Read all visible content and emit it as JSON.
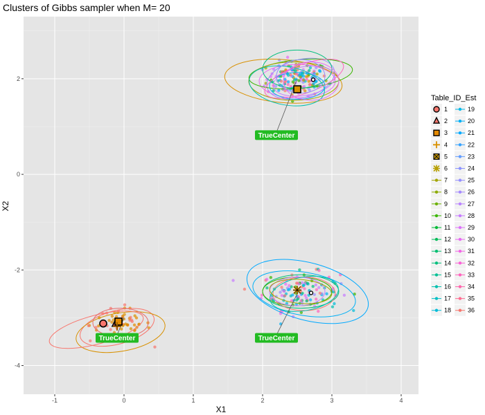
{
  "chart_data": {
    "type": "scatter",
    "title": "Clusters of Gibbs sampler when M= 20",
    "xlabel": "X1",
    "ylabel": "X2",
    "xlim": [
      -1.45,
      4.25
    ],
    "ylim": [
      -4.6,
      3.3
    ],
    "x_ticks": [
      -1,
      0,
      1,
      2,
      3,
      4
    ],
    "y_ticks": [
      -4,
      -2,
      0,
      2
    ],
    "grid": true,
    "background": "#e5e5e5",
    "legend": {
      "title": "Table_ID_Est",
      "placement": "right",
      "entries": [
        "1",
        "2",
        "3",
        "4",
        "5",
        "6",
        "7",
        "8",
        "9",
        "10",
        "11",
        "12",
        "13",
        "14",
        "15",
        "16",
        "17",
        "18",
        "19",
        "20",
        "21",
        "22",
        "23",
        "24",
        "25",
        "26",
        "27",
        "28",
        "29",
        "30",
        "31",
        "32",
        "33",
        "34",
        "35",
        "36"
      ]
    },
    "clusters": [
      {
        "center": [
          2.5,
          2.0
        ],
        "sd": [
          0.22,
          0.18
        ],
        "count": 160,
        "colors": [
          "#e76bf3",
          "#00bfc4",
          "#9590ff",
          "#c77cff",
          "#00b0f6",
          "#a3a500",
          "#39b600",
          "#00bf7d",
          "#f8766d",
          "#d89000",
          "#ff62bc",
          "#00a9ff"
        ]
      },
      {
        "center": [
          2.55,
          -2.45
        ],
        "sd": [
          0.28,
          0.2
        ],
        "count": 130,
        "colors": [
          "#00bf7d",
          "#00c0af",
          "#00b0f6",
          "#39b600",
          "#f8766d",
          "#c77cff",
          "#00bcd8",
          "#ff62bc",
          "#9590ff",
          "#e76bf3"
        ]
      },
      {
        "center": [
          -0.05,
          -3.15
        ],
        "sd": [
          0.22,
          0.18
        ],
        "count": 70,
        "colors": [
          "#f8766d",
          "#e38900",
          "#d89000"
        ]
      }
    ],
    "ellipses": [
      {
        "cx": 2.5,
        "cy": 1.95,
        "rx": 0.55,
        "ry": 0.35,
        "angle": 0,
        "color": "#e76bf3"
      },
      {
        "cx": 2.55,
        "cy": 2.0,
        "rx": 0.5,
        "ry": 0.4,
        "angle": 15,
        "color": "#9590ff"
      },
      {
        "cx": 2.3,
        "cy": 1.95,
        "rx": 0.85,
        "ry": 0.45,
        "angle": -5,
        "color": "#d89000"
      },
      {
        "cx": 2.55,
        "cy": 2.1,
        "rx": 0.75,
        "ry": 0.3,
        "angle": 5,
        "color": "#39b600"
      },
      {
        "cx": 2.5,
        "cy": 2.2,
        "rx": 0.5,
        "ry": 0.4,
        "angle": 0,
        "color": "#00bf7d"
      },
      {
        "cx": 2.45,
        "cy": 1.95,
        "rx": 0.65,
        "ry": 0.4,
        "angle": 0,
        "color": "#a3a500"
      },
      {
        "cx": 2.6,
        "cy": 1.95,
        "rx": 0.45,
        "ry": 0.3,
        "angle": 10,
        "color": "#c77cff"
      },
      {
        "cx": 2.5,
        "cy": 1.85,
        "rx": 0.4,
        "ry": 0.28,
        "angle": 0,
        "color": "#00b0f6"
      },
      {
        "cx": 2.35,
        "cy": 1.85,
        "rx": 0.55,
        "ry": 0.4,
        "angle": -10,
        "color": "#00c0af"
      },
      {
        "cx": 2.6,
        "cy": 2.0,
        "rx": 0.6,
        "ry": 0.3,
        "angle": 20,
        "color": "#ff62bc"
      },
      {
        "cx": 2.55,
        "cy": 2.05,
        "rx": 0.35,
        "ry": 0.35,
        "angle": 0,
        "color": "#9590ff"
      },
      {
        "cx": 2.7,
        "cy": 1.95,
        "rx": 0.4,
        "ry": 0.4,
        "angle": 0,
        "color": "#e76bf3"
      },
      {
        "cx": 2.65,
        "cy": -2.45,
        "rx": 0.9,
        "ry": 0.6,
        "angle": -15,
        "color": "#00a9ff"
      },
      {
        "cx": 2.6,
        "cy": -2.5,
        "rx": 0.75,
        "ry": 0.45,
        "angle": -10,
        "color": "#00b0f6"
      },
      {
        "cx": 2.55,
        "cy": -2.45,
        "rx": 0.55,
        "ry": 0.35,
        "angle": 0,
        "color": "#00bf7d"
      },
      {
        "cx": 2.5,
        "cy": -2.45,
        "rx": 0.5,
        "ry": 0.3,
        "angle": 0,
        "color": "#39b600"
      },
      {
        "cx": 2.6,
        "cy": -2.5,
        "rx": 0.45,
        "ry": 0.35,
        "angle": 0,
        "color": "#f8766d"
      },
      {
        "cx": 2.5,
        "cy": -2.45,
        "rx": 0.4,
        "ry": 0.3,
        "angle": 0,
        "color": "#c77cff"
      },
      {
        "cx": 2.6,
        "cy": -2.5,
        "rx": 0.5,
        "ry": 0.35,
        "angle": 10,
        "color": "#00c0af"
      },
      {
        "cx": 2.55,
        "cy": -2.45,
        "rx": 0.45,
        "ry": 0.25,
        "angle": -5,
        "color": "#a3a500"
      },
      {
        "cx": -0.1,
        "cy": -3.2,
        "rx": 0.55,
        "ry": 0.35,
        "angle": 15,
        "color": "#f8766d"
      },
      {
        "cx": -0.05,
        "cy": -3.3,
        "rx": 0.65,
        "ry": 0.4,
        "angle": 10,
        "color": "#d89000"
      },
      {
        "cx": -0.4,
        "cy": -3.25,
        "rx": 0.7,
        "ry": 0.3,
        "angle": 15,
        "color": "#f8766d"
      },
      {
        "cx": -0.05,
        "cy": -3.1,
        "rx": 0.4,
        "ry": 0.3,
        "angle": 0,
        "color": "#e76b6b"
      }
    ],
    "centers": [
      {
        "x": -0.3,
        "y": -3.12,
        "shape": "circle",
        "color": "#f8766d"
      },
      {
        "x": -0.12,
        "y": -3.12,
        "shape": "triangle",
        "color": "#e76b6b"
      },
      {
        "x": -0.08,
        "y": -3.08,
        "shape": "square",
        "color": "#e38900"
      },
      {
        "x": -0.1,
        "y": -3.18,
        "shape": "cross",
        "color": "#e38900"
      },
      {
        "x": 2.5,
        "y": 1.78,
        "shape": "square",
        "color": "#d89000"
      },
      {
        "x": 2.5,
        "y": -2.42,
        "shape": "asterisk",
        "color": "#d89000"
      },
      {
        "x": 2.73,
        "y": 1.98,
        "shape": "point",
        "color": "#000000"
      },
      {
        "x": 2.7,
        "y": -2.48,
        "shape": "point",
        "color": "#000000"
      }
    ],
    "annotations": [
      {
        "label": "TrueCenter",
        "x": 1.9,
        "y": 0.82,
        "point": [
          2.5,
          2.0
        ]
      },
      {
        "label": "TrueCenter",
        "x": 1.9,
        "y": -3.42,
        "point": [
          2.5,
          -2.5
        ]
      },
      {
        "label": "TrueCenter",
        "x": -0.4,
        "y": -3.42,
        "point": [
          0.0,
          -3.0
        ]
      }
    ]
  }
}
